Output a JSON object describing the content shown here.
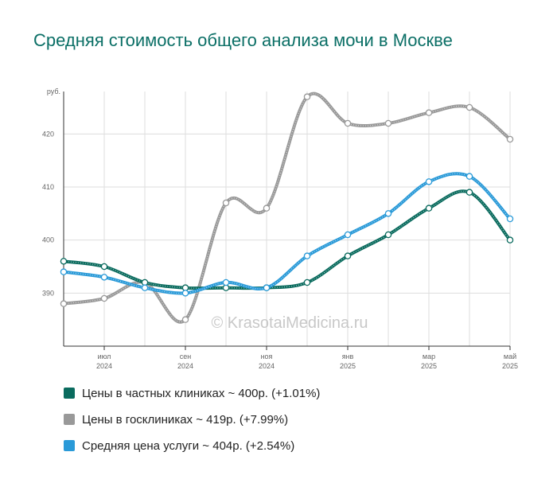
{
  "chart_data": {
    "type": "line",
    "title": "Средняя стоимость общего анализа мочи в Москве",
    "y_unit": "руб.",
    "ylim": [
      380,
      428
    ],
    "yticks": [
      390,
      400,
      410,
      420
    ],
    "ytick_labels": [
      "390",
      "400",
      "410",
      "420"
    ],
    "x": [
      "2024-06",
      "2024-07",
      "2024-08",
      "2024-09",
      "2024-10",
      "2024-11",
      "2024-12",
      "2025-01",
      "2025-02",
      "2025-03",
      "2025-04",
      "2025-05"
    ],
    "xtick_labels": [
      {
        "index": 1,
        "month": "июл",
        "year": "2024"
      },
      {
        "index": 3,
        "month": "сен",
        "year": "2024"
      },
      {
        "index": 5,
        "month": "ноя",
        "year": "2024"
      },
      {
        "index": 7,
        "month": "янв",
        "year": "2025"
      },
      {
        "index": 9,
        "month": "мар",
        "year": "2025"
      },
      {
        "index": 11,
        "month": "май",
        "year": "2025"
      }
    ],
    "grid": true,
    "watermark": "© KrasotaiMedicina.ru",
    "series": [
      {
        "name": "Цены в частных клиниках ~ 400р. (+1.01%)",
        "color": "#0a6b5e",
        "values": [
          396,
          395,
          392,
          391,
          391,
          391,
          392,
          397,
          401,
          406,
          409,
          400
        ]
      },
      {
        "name": "Цены в госклиниках ~ 419р. (+7.99%)",
        "color": "#999999",
        "values": [
          388,
          389,
          392,
          385,
          407,
          406,
          427,
          422,
          422,
          424,
          425,
          419
        ]
      },
      {
        "name": "Средняя цена услуги ~ 404р. (+2.54%)",
        "color": "#2a9ad8",
        "values": [
          394,
          393,
          391,
          390,
          392,
          391,
          397,
          401,
          405,
          411,
          412,
          404
        ]
      }
    ]
  }
}
